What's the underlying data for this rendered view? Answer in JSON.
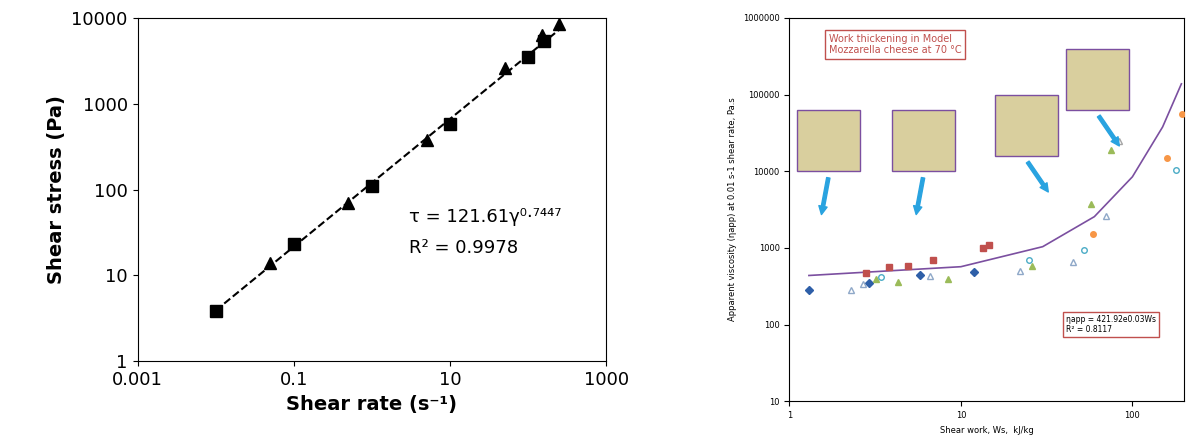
{
  "chart_data": [
    {
      "type": "scatter",
      "x_label": "Shear rate (s⁻¹)",
      "y_label": "Shear stress (Pa)",
      "log": true,
      "grid": false,
      "xlim": [
        0.001,
        1000
      ],
      "xticks": [
        0.001,
        0.1,
        10,
        1000
      ],
      "ylim": [
        1,
        10000
      ],
      "yticks": [
        1,
        10,
        100,
        1000,
        10000
      ],
      "annotations": [
        "τ = 121.61γ⁰·⁷⁴⁴⁷",
        "R² = 0.9978"
      ],
      "series": [
        {
          "type": "line",
          "line_style": "dashed",
          "color": "#000000",
          "x": [
            0.01,
            250
          ],
          "values": [
            3.9,
            7300
          ]
        },
        {
          "type": "scatter",
          "marker": "square",
          "color": "#000000",
          "x": [
            0.01,
            0.1,
            1,
            10,
            100,
            160
          ],
          "values": [
            3.9,
            23,
            110,
            580,
            3500,
            5400
          ]
        },
        {
          "type": "scatter",
          "marker": "triangle",
          "color": "#000000",
          "x": [
            0.05,
            0.5,
            5,
            50,
            150,
            250
          ],
          "values": [
            14,
            70,
            380,
            2600,
            6300,
            8500
          ]
        }
      ]
    },
    {
      "type": "scatter",
      "x_label": "Shear work, Ws,  kJ/kg",
      "y_label": "Apparent viscosity (ηapp) at 0.01 s-1 shear rate, Pa.s",
      "log": true,
      "grid": false,
      "xlim": [
        1,
        200
      ],
      "xticks": [
        1,
        10,
        100
      ],
      "ylim": [
        10,
        1000000
      ],
      "yticks": [
        10,
        100,
        1000,
        10000,
        100000,
        1000000
      ],
      "annotations": [
        "Work thickening in Model\nMozzarella cheese at 70 °C",
        "ηapp = 421.92e0.03Ws\nR² = 0.8117"
      ],
      "series": [
        {
          "type": "line",
          "line_style": "solid",
          "color": "#7b4fa0",
          "x": [
            1.3,
            10,
            30,
            60,
            100,
            150,
            193
          ],
          "values": [
            438,
            570,
            1040,
            2560,
            8470,
            37800,
            138000
          ]
        },
        {
          "type": "scatter",
          "marker": "diamond",
          "color": "#2e5fa8",
          "x": [
            1.3,
            2.9,
            5.8,
            12
          ],
          "values": [
            280,
            350,
            440,
            490
          ]
        },
        {
          "type": "scatter",
          "marker": "triangle_open",
          "color": "#8fa8c8",
          "x": [
            2.3,
            2.7,
            6.6,
            22,
            45,
            70
          ],
          "values": [
            280,
            340,
            430,
            500,
            650,
            2600
          ]
        },
        {
          "type": "scatter",
          "marker": "square",
          "color": "#c0504d",
          "x": [
            2.8,
            3.8,
            4.9,
            6.9,
            13.5,
            14.5
          ],
          "values": [
            470,
            560,
            580,
            700,
            1000,
            1100
          ]
        },
        {
          "type": "scatter",
          "marker": "triangle",
          "color": "#9bbb59",
          "x": [
            3.2,
            4.3,
            8.4,
            26,
            57,
            75
          ],
          "values": [
            400,
            360,
            390,
            580,
            3700,
            19000
          ]
        },
        {
          "type": "scatter",
          "marker": "triangle_open",
          "color": "#a6a6a6",
          "x": [
            83
          ],
          "values": [
            25000
          ]
        },
        {
          "type": "scatter",
          "marker": "circle",
          "color": "#f79646",
          "x": [
            59,
            160,
            195
          ],
          "values": [
            1500,
            15000,
            55000
          ]
        },
        {
          "type": "scatter",
          "marker": "circle_open",
          "color": "#4bacc6",
          "x": [
            3.4,
            25,
            52,
            180
          ],
          "values": [
            420,
            700,
            950,
            10500
          ]
        }
      ]
    }
  ]
}
